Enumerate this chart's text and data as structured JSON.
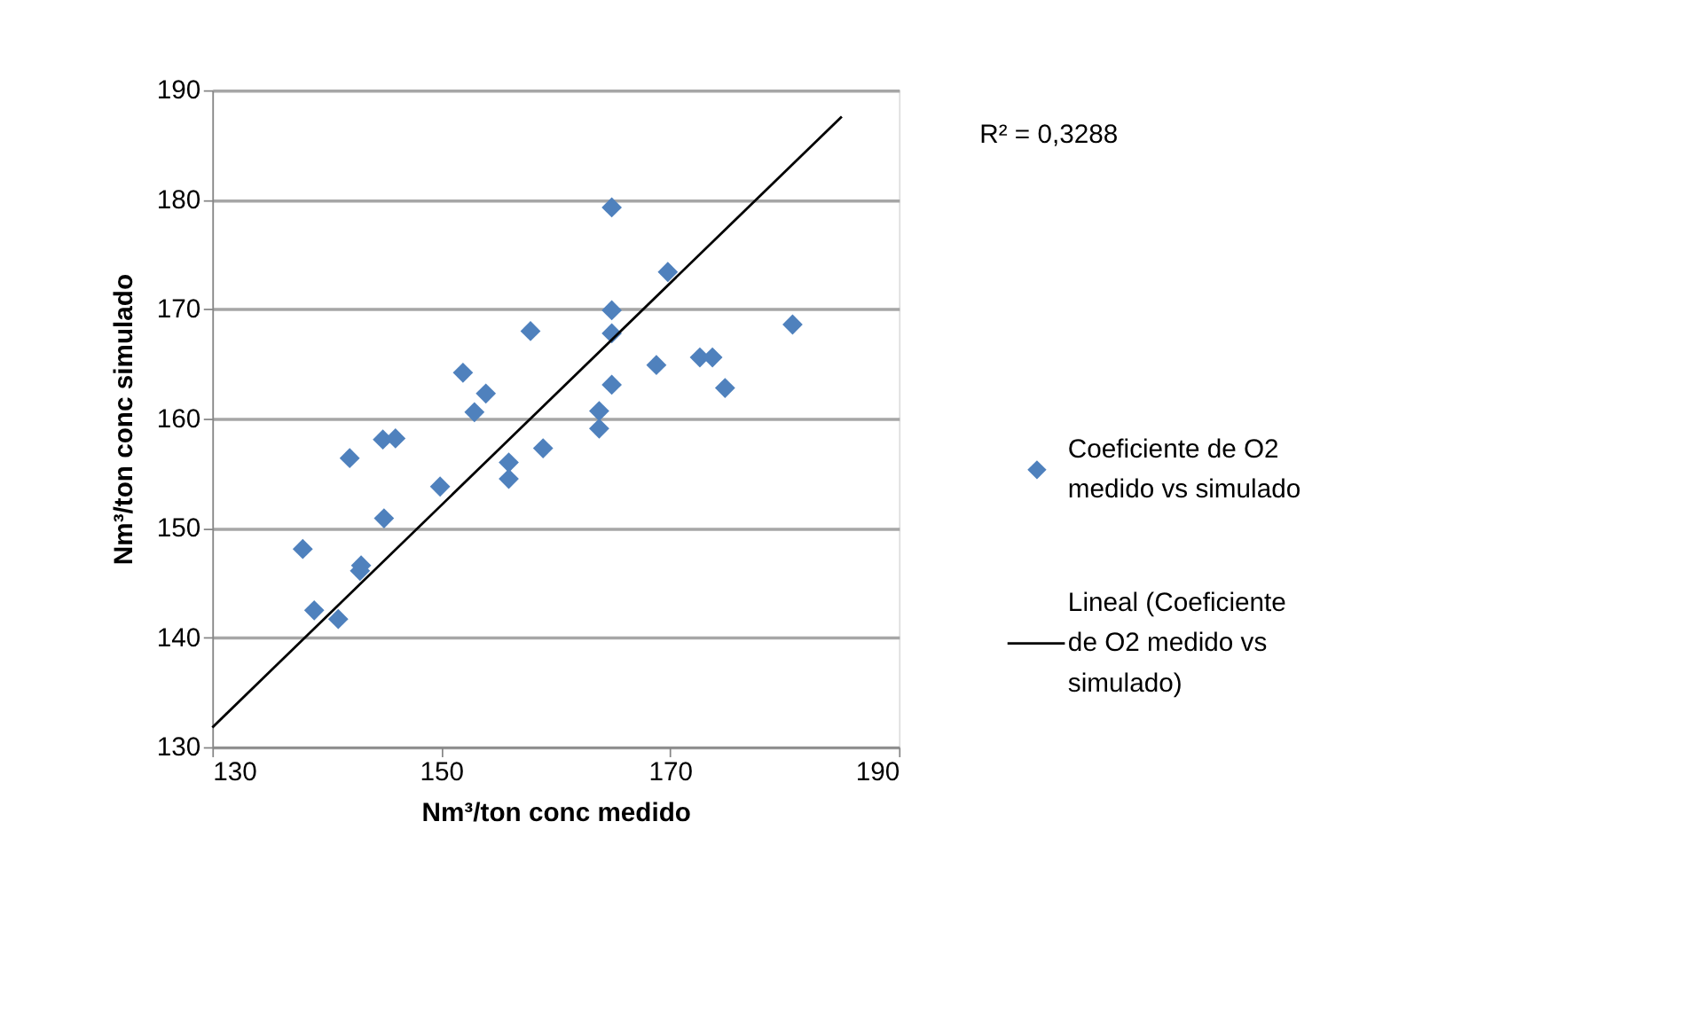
{
  "chart_data": {
    "type": "scatter",
    "xlabel": "Nm³/ton conc  medido",
    "ylabel": "Nm³/ton conc  simulado",
    "xlim": [
      130,
      190
    ],
    "xticks": [
      130,
      150,
      170,
      190
    ],
    "ylim": [
      130,
      190
    ],
    "yticks": [
      130,
      140,
      150,
      160,
      170,
      180,
      190
    ],
    "grid": "y",
    "legend": "right",
    "marker": "diamond",
    "annotations": [
      "R² = 0,3288"
    ],
    "series": [
      {
        "name": "Coeficiente de O2 medido vs simulado",
        "color": "#4f81bd",
        "x": [
          137.9,
          138.9,
          141.0,
          142.0,
          143.0,
          142.9,
          145.0,
          144.9,
          146.0,
          149.9,
          151.9,
          153.9,
          152.9,
          157.8,
          155.9,
          155.9,
          158.9,
          164.9,
          169.8,
          164.9,
          164.9,
          168.8,
          172.6,
          173.7,
          174.8,
          180.7,
          164.9,
          163.8,
          163.8
        ],
        "values": [
          148.1,
          142.5,
          141.7,
          156.4,
          146.6,
          146.1,
          150.9,
          158.1,
          158.2,
          153.8,
          164.2,
          162.3,
          160.6,
          168.0,
          156.0,
          154.5,
          157.3,
          179.3,
          173.4,
          169.9,
          167.8,
          164.9,
          165.6,
          165.6,
          162.8,
          168.6,
          163.1,
          160.7,
          159.1
        ]
      },
      {
        "name": "Lineal (Coeficiente de O2 medido vs simulado)",
        "color": "#000000",
        "type": "line",
        "marker": "none",
        "line_style": "solid",
        "x": [
          130,
          185
        ],
        "values": [
          131.8,
          187.6
        ]
      }
    ]
  }
}
